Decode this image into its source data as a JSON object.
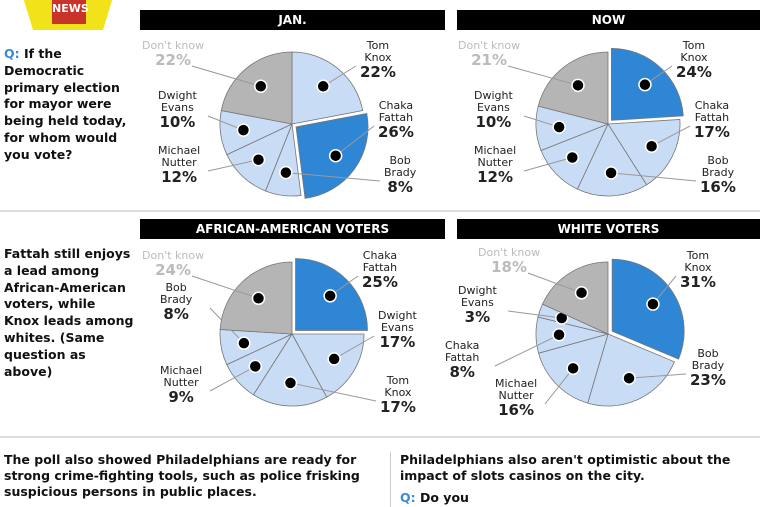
{
  "logo": {
    "text": "NEWS"
  },
  "question1": {
    "q_label": "Q:",
    "text": "If the Democratic primary election for mayor were being held today, for whom would you vote?"
  },
  "question2": {
    "text": "Fattah still enjoys a lead among African-American voters, while Knox leads among whites. (Same question as above)"
  },
  "bottom_left": "The poll also showed Philadelphians are ready for strong crime-fighting tools, such as police frisking suspicious persons in public places.",
  "bottom_right": {
    "text": "Philadelphians also aren't optimistic about the impact of slots casinos on the city.",
    "q_label": "Q:",
    "q_text": "Do you"
  },
  "colors": {
    "highlight": "#2f86d4",
    "candidate": "#c9dcf5",
    "dont_know": "#b5b5b5",
    "dont_know_text": "#bbbbbb"
  },
  "chart_data": [
    {
      "type": "pie",
      "title": "JAN.",
      "slices": [
        {
          "name": "Tom Knox",
          "value": 22
        },
        {
          "name": "Chaka Fattah",
          "value": 26,
          "highlight": true
        },
        {
          "name": "Bob Brady",
          "value": 8
        },
        {
          "name": "Michael Nutter",
          "value": 12
        },
        {
          "name": "Dwight Evans",
          "value": 10
        },
        {
          "name": "Don't know",
          "value": 22,
          "dk": true
        }
      ]
    },
    {
      "type": "pie",
      "title": "NOW",
      "slices": [
        {
          "name": "Tom Knox",
          "value": 24,
          "highlight": true
        },
        {
          "name": "Chaka Fattah",
          "value": 17
        },
        {
          "name": "Bob Brady",
          "value": 16
        },
        {
          "name": "Michael Nutter",
          "value": 12
        },
        {
          "name": "Dwight Evans",
          "value": 10
        },
        {
          "name": "Don't know",
          "value": 21,
          "dk": true
        }
      ]
    },
    {
      "type": "pie",
      "title": "AFRICAN-AMERICAN VOTERS",
      "slices": [
        {
          "name": "Chaka Fattah",
          "value": 25,
          "highlight": true
        },
        {
          "name": "Dwight Evans",
          "value": 17
        },
        {
          "name": "Tom Knox",
          "value": 17
        },
        {
          "name": "Michael Nutter",
          "value": 9
        },
        {
          "name": "Bob Brady",
          "value": 8
        },
        {
          "name": "Don't know",
          "value": 24,
          "dk": true
        }
      ]
    },
    {
      "type": "pie",
      "title": "WHITE VOTERS",
      "slices": [
        {
          "name": "Tom Knox",
          "value": 31,
          "highlight": true
        },
        {
          "name": "Bob Brady",
          "value": 23
        },
        {
          "name": "Michael Nutter",
          "value": 16
        },
        {
          "name": "Chaka Fattah",
          "value": 8
        },
        {
          "name": "Dwight Evans",
          "value": 3
        },
        {
          "name": "Don't know",
          "value": 18,
          "dk": true
        }
      ]
    }
  ]
}
